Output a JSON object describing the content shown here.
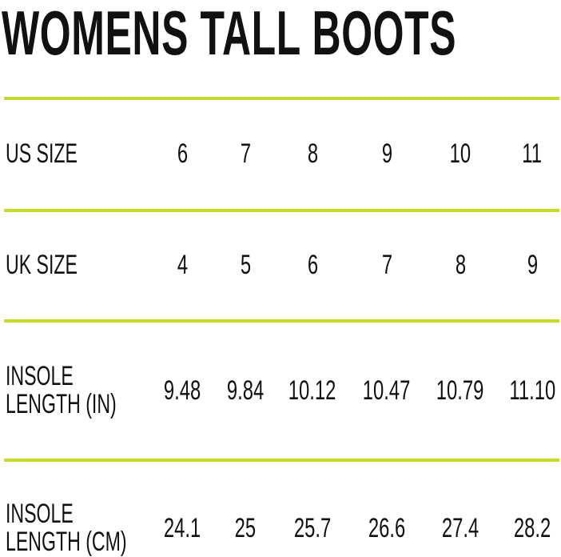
{
  "title": "WOMENS TALL BOOTS",
  "accent_color": "#c5d92a",
  "rows": [
    {
      "label": [
        "US SIZE"
      ],
      "values": [
        "6",
        "7",
        "8",
        "9",
        "10",
        "11"
      ]
    },
    {
      "label": [
        "UK SIZE"
      ],
      "values": [
        "4",
        "5",
        "6",
        "7",
        "8",
        "9"
      ]
    },
    {
      "label": [
        "INSOLE",
        "LENGTH (IN)"
      ],
      "values": [
        "9.48",
        "9.84",
        "10.12",
        "10.47",
        "10.79",
        "11.10"
      ]
    },
    {
      "label": [
        "INSOLE",
        "LENGTH (CM)"
      ],
      "values": [
        "24.1",
        "25",
        "25.7",
        "26.6",
        "27.4",
        "28.2"
      ]
    }
  ]
}
